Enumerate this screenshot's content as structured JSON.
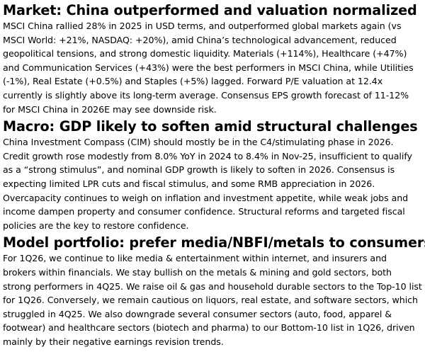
{
  "sections": [
    {
      "heading": "Market: China outperformed and valuation normalized",
      "body": "MSCI China rallied 28% in 2025 in USD terms, and outperformed global markets again (vs MSCI World: +21%, NASDAQ: +20%), amid China’s technological advancement, reduced geopolitical tensions, and strong domestic liquidity. Materials (+114%), Healthcare (+47%) and Communication Services (+43%) were the best performers in MSCI China, while Utilities (-1%), Real Estate (+0.5%) and Staples (+5%) lagged. Forward P/E valuation at 12.4x currently is slightly above its long-term average. Consensus EPS growth forecast of 11-12% for MSCI China in 2026E may see downside risk."
    },
    {
      "heading": "Macro: GDP likely to soften amid structural challenges",
      "body": "China Investment Compass (CIM) should mostly be in the C4/stimulating phase in 2026. Credit growth rose modestly from 8.0% YoY in 2024 to 8.4% in Nov-25, insufficient to qualify as a “strong stimulus”, and nominal GDP growth is likely to soften in 2026. Consensus is expecting limited LPR cuts and fiscal stimulus, and some RMB appreciation in 2026. Overcapacity continues to weigh on inflation and investment appetite, while weak jobs and income dampen property and consumer confidence. Structural reforms and targeted fiscal policies are the key to restore confidence."
    },
    {
      "heading": "Model portfolio: prefer media/NBFI/metals to consumers",
      "body": "For 1Q26, we continue to like media & entertainment within internet, and insurers and brokers within financials. We stay bullish on the metals & mining and gold sectors, both strong performers in 4Q25. We raise oil & gas and household durable sectors to the Top-10 list for 1Q26. Conversely, we remain cautious on liquors, real estate, and software sectors, which struggled in 4Q25. We also downgrade several consumer sectors (auto, food, apparel & footwear) and healthcare sectors (biotech and pharma) to our Bottom-10 list in 1Q26, driven mainly by their negative earnings revision trends."
    }
  ]
}
